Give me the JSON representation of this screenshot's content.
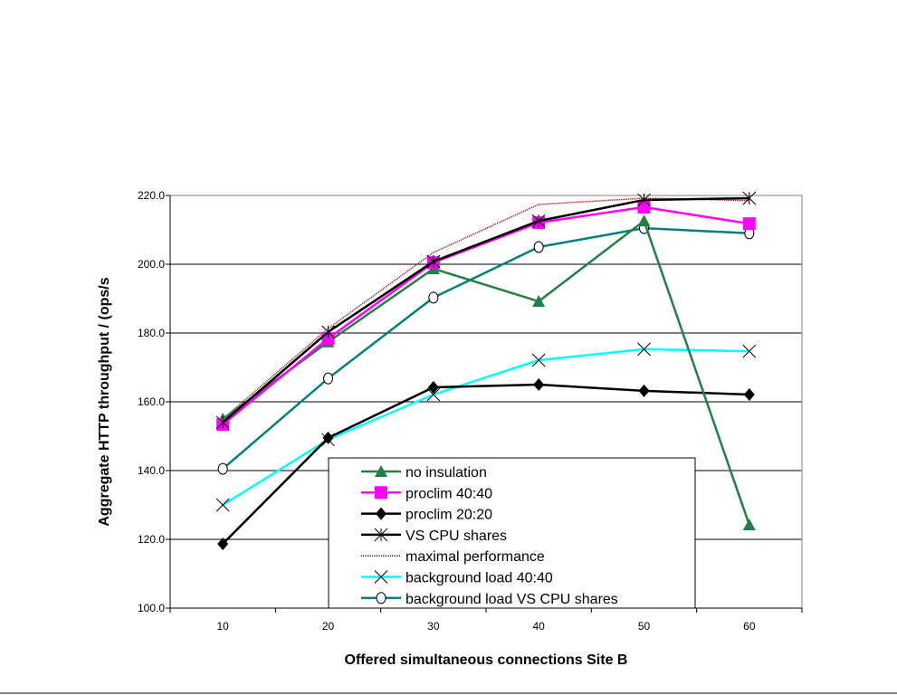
{
  "chart_data": {
    "type": "line",
    "title": "",
    "xlabel": "Offered simultaneous connections Site B",
    "ylabel": "Aggregate HTTP throughput / (ops/s",
    "categories": [
      "10",
      "20",
      "30",
      "40",
      "50",
      "60"
    ],
    "ylim": [
      100,
      220
    ],
    "yticks": [
      "100.0",
      "120.0",
      "140.0",
      "160.0",
      "180.0",
      "200.0",
      "220.0"
    ],
    "grid": "horizontal",
    "legend_position": "bottom-center",
    "series": [
      {
        "name": "no insulation",
        "color": "#228044",
        "marker": "triangle",
        "values": [
          155,
          177.4,
          198.7,
          189.2,
          212.6,
          124.2
        ]
      },
      {
        "name": "proclim 40:40",
        "color": "#ff00ff",
        "marker": "square",
        "values": [
          153.4,
          178.4,
          200.5,
          212.1,
          216.6,
          211.8
        ]
      },
      {
        "name": "proclim 20:20",
        "color": "#000000",
        "marker": "diamond",
        "values": [
          118.7,
          149.5,
          164.2,
          165,
          163.2,
          162.1
        ]
      },
      {
        "name": "VS CPU shares",
        "color": "#000000",
        "marker": "asterisk",
        "values": [
          154,
          180.3,
          200.8,
          212.6,
          218.7,
          219.2
        ]
      },
      {
        "name": "maximal performance",
        "color": "#8b0000",
        "marker": "none",
        "dotted": true,
        "values": [
          155,
          181.3,
          203.4,
          217.4,
          219.2,
          218.5
        ]
      },
      {
        "name": "background load 40:40",
        "color": "#00ffff",
        "marker": "x",
        "values": [
          130,
          149,
          162.1,
          172.1,
          175.3,
          174.7
        ]
      },
      {
        "name": "background load VS CPU shares",
        "color": "#008080",
        "marker": "circle",
        "values": [
          140.5,
          166.8,
          190.3,
          205,
          210.5,
          209
        ]
      }
    ]
  }
}
